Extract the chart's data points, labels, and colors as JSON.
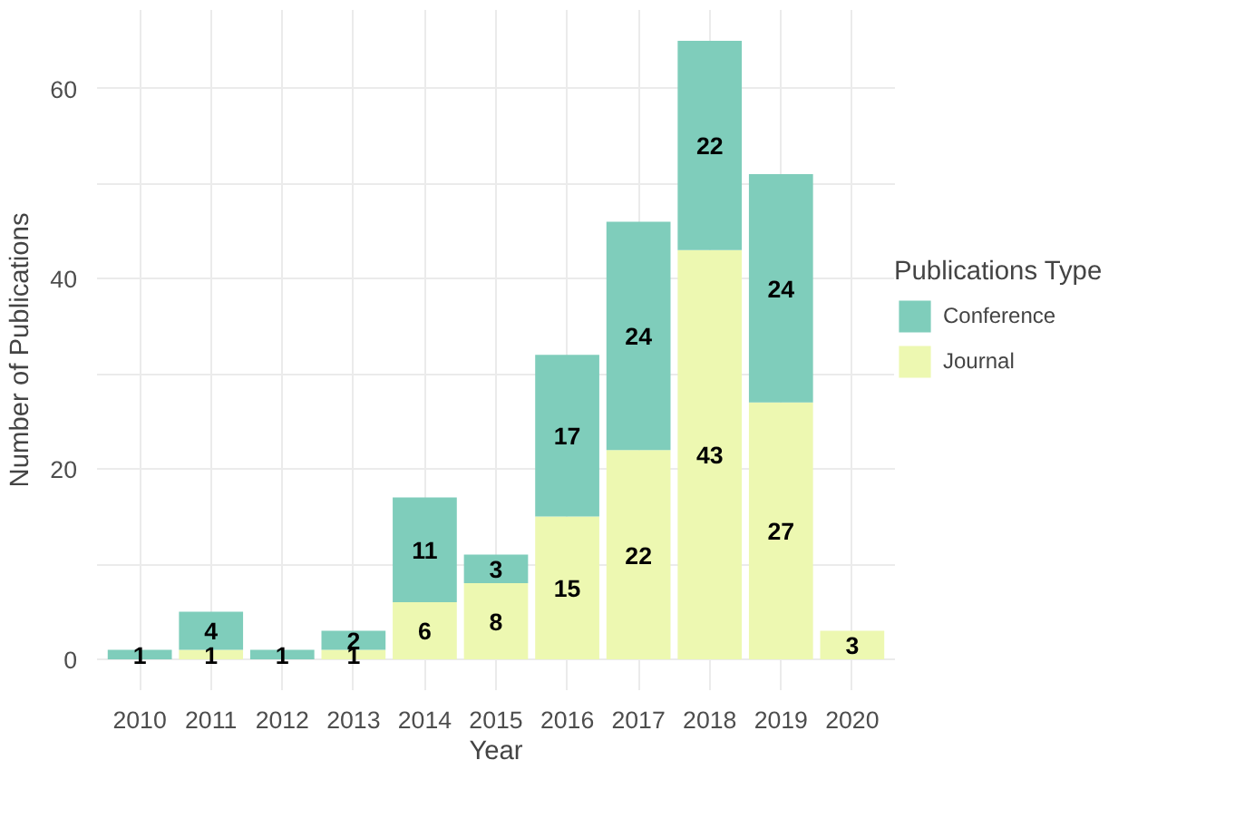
{
  "chart_data": {
    "type": "bar",
    "stacked": true,
    "xlabel": "Year",
    "ylabel": "Number of Publications",
    "legend_title": "Publications Type",
    "categories": [
      "2010",
      "2011",
      "2012",
      "2013",
      "2014",
      "2015",
      "2016",
      "2017",
      "2018",
      "2019",
      "2020"
    ],
    "series": [
      {
        "name": "Journal",
        "color": "#edf8b1",
        "values": [
          null,
          1,
          null,
          1,
          6,
          8,
          15,
          22,
          43,
          27,
          3
        ]
      },
      {
        "name": "Conference",
        "color": "#7fcdbb",
        "values": [
          1,
          4,
          1,
          2,
          11,
          3,
          17,
          24,
          22,
          24,
          null
        ]
      }
    ],
    "ylim": [
      -3.25,
      68.25
    ],
    "yticks": [
      0,
      {
        "value": 10,
        "label": null
      },
      20,
      {
        "value": 30,
        "label": null
      },
      40,
      {
        "value": 50,
        "label": null
      },
      60
    ],
    "grid": true,
    "legend": "right",
    "data_labels": true
  }
}
